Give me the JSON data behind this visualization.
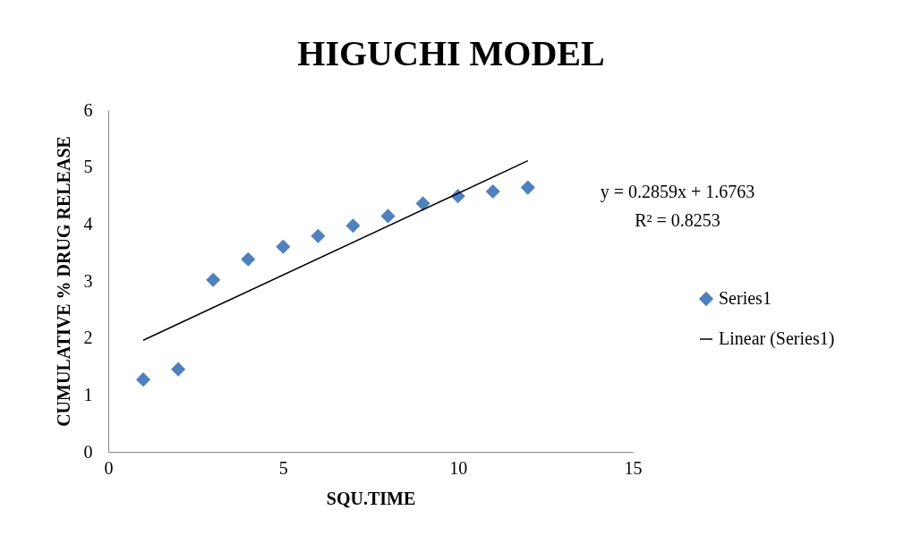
{
  "chart_data": {
    "type": "scatter",
    "title": "HIGUCHI MODEL",
    "xlabel": "SQU.TIME",
    "ylabel": "CUMULATIVE % DRUG RELEASE",
    "annotations": [
      "y = 0.2859x + 1.6763",
      "R² = 0.8253"
    ],
    "series": [
      {
        "name": "Series1",
        "marker": "diamond",
        "color": "#4f81bd",
        "x": [
          1,
          2,
          3,
          4,
          5,
          6,
          7,
          8,
          9,
          10,
          11,
          12
        ],
        "values": [
          1.27,
          1.45,
          3.02,
          3.38,
          3.6,
          3.79,
          3.97,
          4.14,
          4.36,
          4.49,
          4.57,
          4.64
        ]
      },
      {
        "name": "Linear (Series1)",
        "type": "line",
        "color": "#000000",
        "x": [
          1,
          12
        ],
        "values": [
          1.96,
          5.11
        ]
      }
    ],
    "xlim": [
      0,
      15
    ],
    "xticks": [
      0,
      5,
      10,
      15
    ],
    "ylim": [
      0,
      6
    ],
    "yticks": [
      0,
      1,
      2,
      3,
      4,
      5,
      6
    ],
    "grid": false,
    "legend": "right",
    "line_style": "solid"
  }
}
